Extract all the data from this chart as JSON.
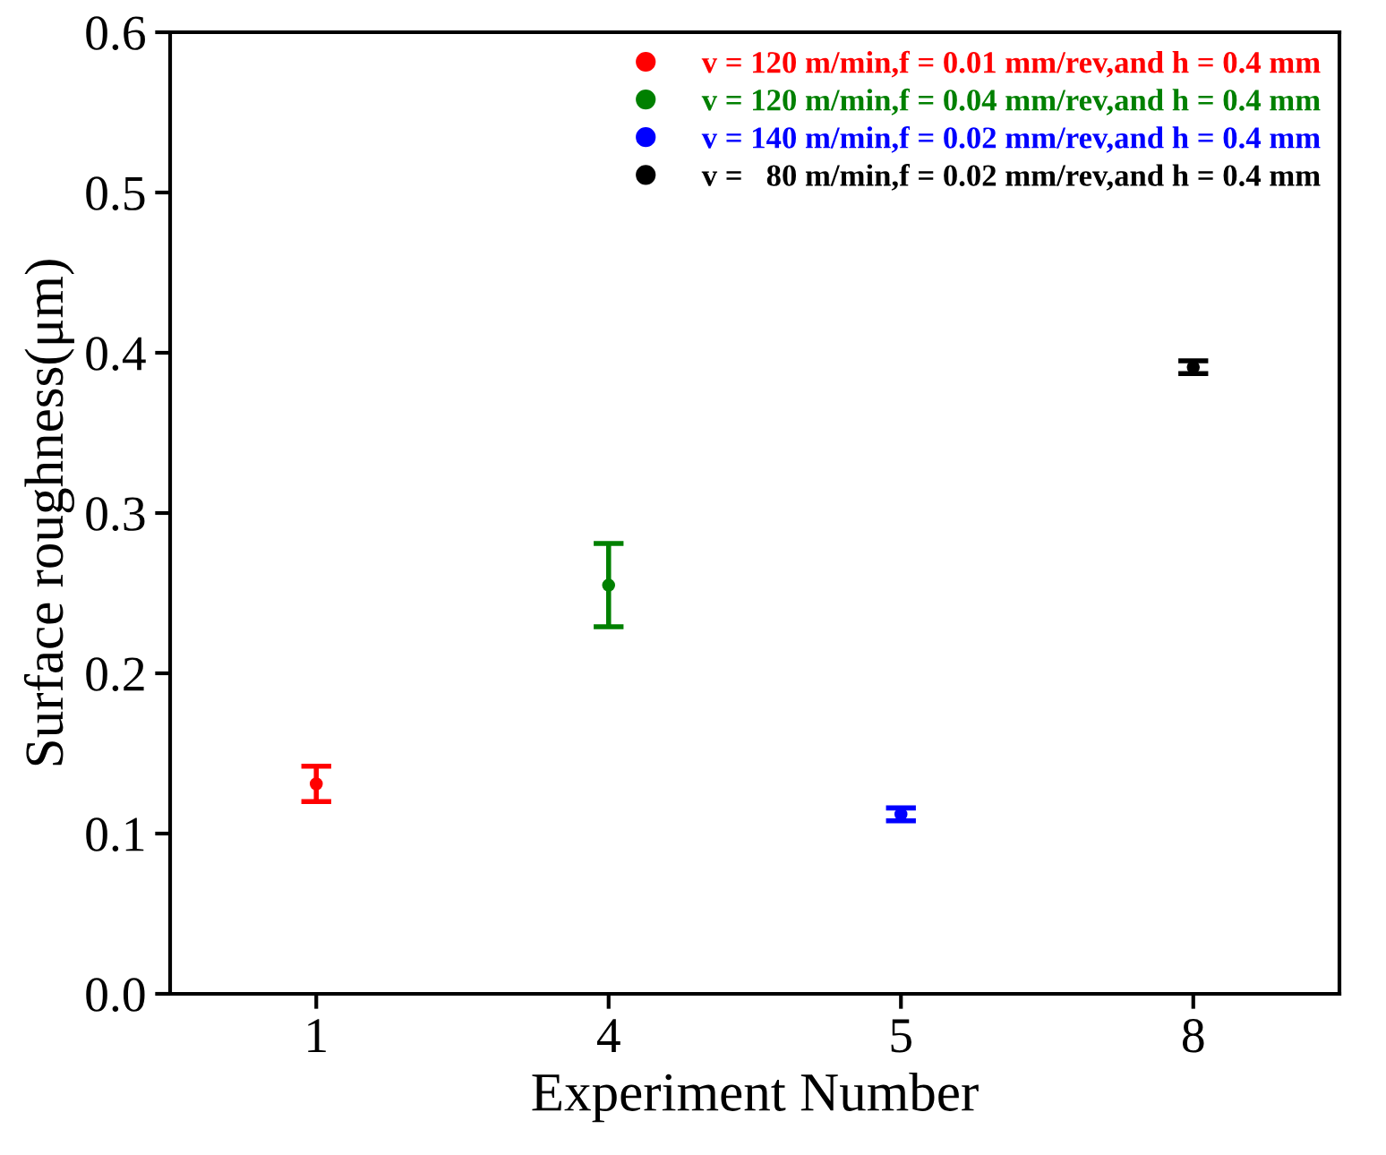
{
  "chart_data": {
    "type": "scatter",
    "xlabel": "Experiment Number",
    "ylabel": "Surface roughness(μm)",
    "categories": [
      "1",
      "4",
      "5",
      "8"
    ],
    "series": [
      {
        "name": "v = 120 m/min,f = 0.01 mm/rev,and h = 0.4 mm",
        "color": "#ff0000",
        "values": [
          0.131,
          null,
          null,
          null
        ],
        "errors": [
          0.011,
          null,
          null,
          null
        ]
      },
      {
        "name": "v = 120 m/min,f = 0.04 mm/rev,and h = 0.4 mm",
        "color": "#008000",
        "values": [
          null,
          0.255,
          null,
          null
        ],
        "errors": [
          null,
          0.026,
          null,
          null
        ]
      },
      {
        "name": "v = 140 m/min,f = 0.02 mm/rev,and h = 0.4 mm",
        "color": "#0000ff",
        "values": [
          null,
          null,
          0.112,
          null
        ],
        "errors": [
          null,
          null,
          0.004,
          null
        ]
      },
      {
        "name": "v =   80 m/min,f = 0.02 mm/rev,and h = 0.4 mm",
        "color": "#000000",
        "values": [
          null,
          null,
          null,
          0.391
        ],
        "errors": [
          null,
          null,
          null,
          0.004
        ]
      }
    ],
    "ylim": [
      0.0,
      0.6
    ],
    "yticks": [
      {
        "value": 0.0,
        "label": "0.0"
      },
      0.1,
      0.2,
      0.3,
      0.4,
      0.5,
      0.6
    ],
    "marker": "circle",
    "grid": false,
    "legend": "top right"
  }
}
